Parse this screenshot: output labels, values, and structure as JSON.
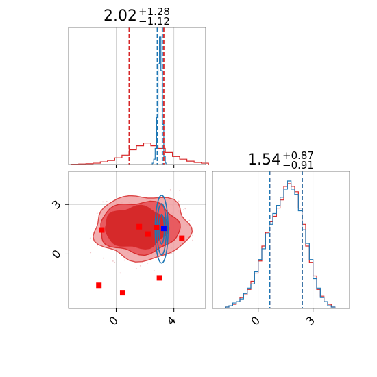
{
  "figure": {
    "type": "corner_plot",
    "colors": {
      "red": "#d62728",
      "blue": "#1f77b4",
      "red_fill": "#f0a0a3",
      "red_mid": "#e8575c",
      "grid": "#c8c8c8",
      "frame": "#808080"
    }
  },
  "chart_data": [
    {
      "panel": "marginal-1",
      "type": "histogram",
      "title": {
        "value": "2.02",
        "plus": "+1.28",
        "minus": "−1.12"
      },
      "xlim": [
        -3.3,
        6.2
      ],
      "grid_x": [
        0,
        4
      ],
      "quantile_lines": [
        {
          "series": "red",
          "x": [
            0.9,
            3.3
          ]
        },
        {
          "series": "blue",
          "x": [
            2.85,
            3.2
          ]
        }
      ],
      "series": [
        {
          "name": "",
          "color": "#d62728",
          "bins": [
            -3.1,
            -2.6,
            -2.1,
            -1.6,
            -1.1,
            -0.6,
            -0.1,
            0.4,
            0.9,
            1.4,
            1.9,
            2.4,
            2.9,
            3.4,
            3.9,
            4.4,
            4.9,
            5.4,
            5.9
          ],
          "heights": [
            0.002,
            0.004,
            0.006,
            0.01,
            0.02,
            0.03,
            0.05,
            0.07,
            0.11,
            0.14,
            0.16,
            0.14,
            0.12,
            0.09,
            0.06,
            0.04,
            0.025,
            0.015,
            0.01
          ]
        },
        {
          "name": "",
          "color": "#1f77b4",
          "bins": [
            2.5,
            2.6,
            2.7,
            2.8,
            2.9,
            3.0,
            3.1,
            3.2,
            3.3,
            3.4
          ],
          "heights": [
            0.01,
            0.04,
            0.12,
            0.35,
            0.75,
            0.95,
            0.7,
            0.3,
            0.06,
            0.01
          ]
        }
      ]
    },
    {
      "panel": "joint",
      "type": "contour",
      "xlim": [
        -3.3,
        6.2
      ],
      "ylim": [
        -3.3,
        5.0
      ],
      "grid_x": [
        0,
        4
      ],
      "grid_y": [
        0,
        3
      ],
      "x_ticks": [
        "0",
        "4"
      ],
      "y_ticks": [
        "0",
        "3"
      ],
      "red_contours": [
        {
          "level": "outer",
          "cx": 1.8,
          "cy": 1.6,
          "rx": 3.3,
          "ry": 1.95
        },
        {
          "level": "mid",
          "cx": 1.6,
          "cy": 1.6,
          "rx": 2.75,
          "ry": 1.55
        },
        {
          "level": "inner",
          "cx": 1.4,
          "cy": 1.6,
          "rx": 2.2,
          "ry": 1.25
        }
      ],
      "blue_contours": [
        {
          "cx": 3.15,
          "cy": 1.5,
          "rx": 0.18,
          "ry": 0.9
        },
        {
          "cx": 3.15,
          "cy": 1.5,
          "rx": 0.32,
          "ry": 1.55
        },
        {
          "cx": 3.15,
          "cy": 1.5,
          "rx": 0.45,
          "ry": 2.05
        }
      ],
      "markers": [
        {
          "color": "red",
          "x": -1.0,
          "y": 1.45
        },
        {
          "color": "red",
          "x": 1.6,
          "y": 1.65
        },
        {
          "color": "red",
          "x": 2.2,
          "y": 1.2
        },
        {
          "color": "red",
          "x": 2.8,
          "y": 1.6
        },
        {
          "color": "red",
          "x": 4.55,
          "y": 0.95
        },
        {
          "color": "red",
          "x": -1.2,
          "y": -1.9
        },
        {
          "color": "red",
          "x": 0.45,
          "y": -2.35
        },
        {
          "color": "red",
          "x": 3.0,
          "y": -1.45
        },
        {
          "color": "blue",
          "x": 3.3,
          "y": 1.55
        }
      ]
    },
    {
      "panel": "marginal-2",
      "type": "histogram",
      "title": {
        "value": "1.54",
        "plus": "+0.87",
        "minus": "−0.91"
      },
      "xlim": [
        -2.5,
        5.0
      ],
      "grid_x": [
        0,
        3
      ],
      "x_ticks": [
        "0",
        "3"
      ],
      "quantile_lines": [
        {
          "series": "red",
          "x": [
            0.63,
            2.41
          ]
        },
        {
          "series": "blue",
          "x": [
            0.63,
            2.41
          ]
        }
      ],
      "series": [
        {
          "name": "",
          "color": "#d62728",
          "bins": [
            -1.8,
            -1.6,
            -1.4,
            -1.2,
            -1.0,
            -0.8,
            -0.6,
            -0.4,
            -0.2,
            0.0,
            0.2,
            0.4,
            0.6,
            0.8,
            1.0,
            1.2,
            1.4,
            1.6,
            1.8,
            2.0,
            2.2,
            2.4,
            2.6,
            2.8,
            3.0,
            3.2,
            3.4,
            3.6,
            3.8,
            4.0
          ],
          "heights": [
            0.01,
            0.02,
            0.03,
            0.05,
            0.08,
            0.1,
            0.14,
            0.2,
            0.26,
            0.35,
            0.46,
            0.56,
            0.64,
            0.68,
            0.74,
            0.8,
            0.9,
            0.92,
            0.9,
            0.86,
            0.74,
            0.62,
            0.46,
            0.34,
            0.24,
            0.14,
            0.09,
            0.05,
            0.03,
            0.01
          ]
        },
        {
          "name": "",
          "color": "#1f77b4",
          "bins": [
            -1.8,
            -1.6,
            -1.4,
            -1.2,
            -1.0,
            -0.8,
            -0.6,
            -0.4,
            -0.2,
            0.0,
            0.2,
            0.4,
            0.6,
            0.8,
            1.0,
            1.2,
            1.4,
            1.6,
            1.8,
            2.0,
            2.2,
            2.4,
            2.6,
            2.8,
            3.0,
            3.2,
            3.4,
            3.6,
            3.8,
            4.0
          ],
          "heights": [
            0.01,
            0.02,
            0.04,
            0.05,
            0.07,
            0.11,
            0.15,
            0.18,
            0.27,
            0.36,
            0.44,
            0.55,
            0.62,
            0.7,
            0.76,
            0.82,
            0.88,
            0.94,
            0.88,
            0.84,
            0.72,
            0.58,
            0.48,
            0.36,
            0.22,
            0.15,
            0.08,
            0.05,
            0.02,
            0.01
          ]
        }
      ]
    }
  ]
}
